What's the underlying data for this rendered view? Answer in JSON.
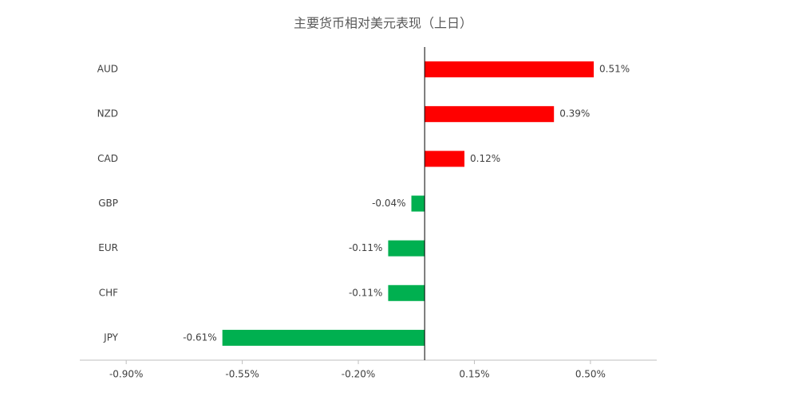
{
  "chart_data": {
    "type": "hbar",
    "title": "主要货币相对美元表现（上日）",
    "categories": [
      "AUD",
      "NZD",
      "CAD",
      "GBP",
      "EUR",
      "CHF",
      "JPY"
    ],
    "values": [
      0.51,
      0.39,
      0.12,
      -0.04,
      -0.11,
      -0.11,
      -0.61
    ],
    "value_labels": [
      "0.51%",
      "0.39%",
      "0.12%",
      "-0.04%",
      "-0.11%",
      "-0.11%",
      "-0.61%"
    ],
    "colors": [
      "#ff0000",
      "#ff0000",
      "#ff0000",
      "#00b050",
      "#00b050",
      "#00b050",
      "#00b050"
    ],
    "xlim": [
      -1.04,
      0.7
    ],
    "xticks": [
      {
        "value": -0.9,
        "label": "-0.90%"
      },
      {
        "value": -0.55,
        "label": "-0.55%"
      },
      {
        "value": -0.2,
        "label": "-0.20%"
      },
      {
        "value": 0.15,
        "label": "0.15%"
      },
      {
        "value": 0.5,
        "label": "0.50%"
      }
    ]
  }
}
